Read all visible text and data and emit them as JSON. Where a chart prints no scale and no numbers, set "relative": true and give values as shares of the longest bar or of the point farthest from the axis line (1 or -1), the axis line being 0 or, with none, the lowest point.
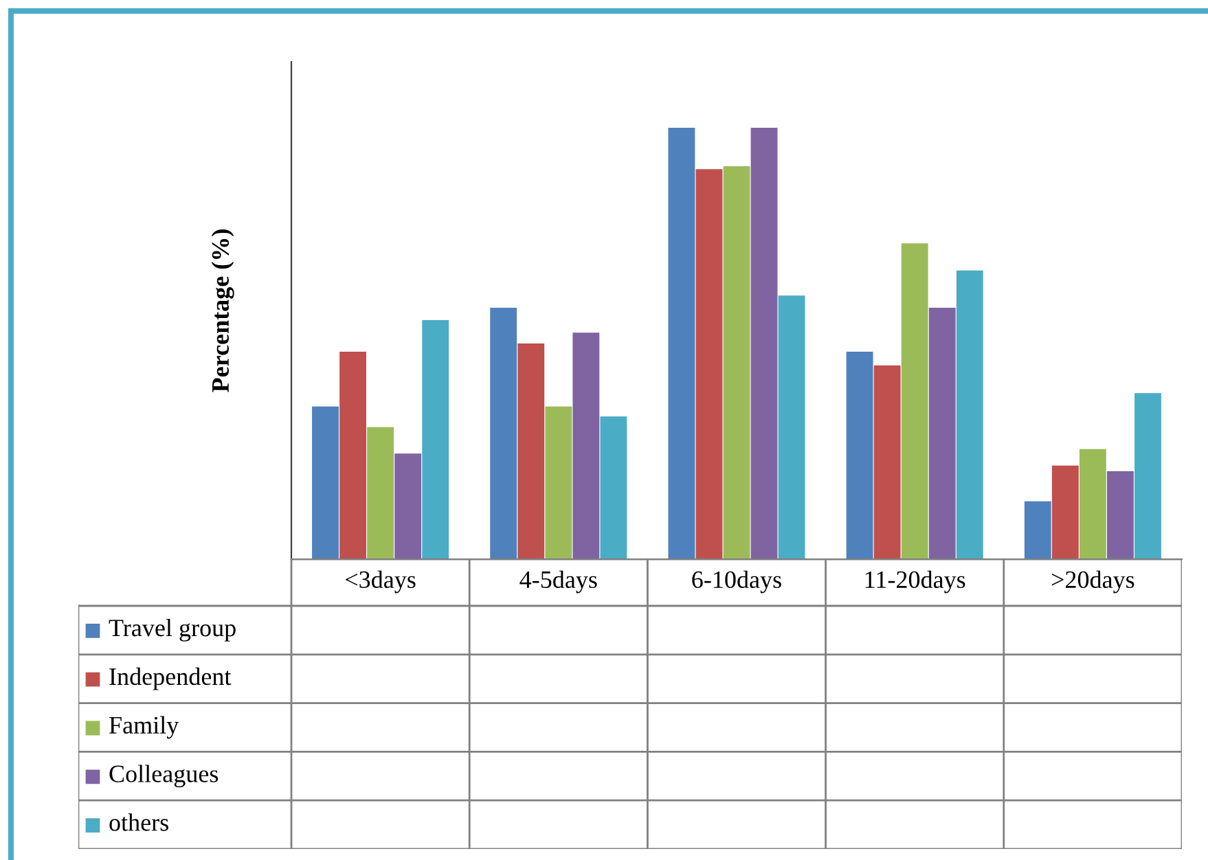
{
  "chart_data": {
    "type": "bar",
    "relative": true,
    "ylabel": "Percentage (%)",
    "legend": "bottom",
    "grid": false,
    "categories": [
      "<3days",
      "4-5days",
      "6-10days",
      "11-20days",
      ">20days"
    ],
    "series": [
      {
        "name": "Travel group",
        "color": "#4f81bd",
        "values": [
          0.354,
          0.583,
          1,
          0.481,
          0.134
        ]
      },
      {
        "name": "Independent",
        "color": "#c0504d",
        "values": [
          0.481,
          0.5,
          0.904,
          0.449,
          0.217
        ]
      },
      {
        "name": "Family",
        "color": "#9bbb59",
        "values": [
          0.306,
          0.354,
          0.911,
          0.732,
          0.255
        ]
      },
      {
        "name": "Colleagues",
        "color": "#8064a2",
        "values": [
          0.245,
          0.525,
          1,
          0.583,
          0.204
        ]
      },
      {
        "name": "others",
        "color": "#4bacc6",
        "values": [
          0.554,
          0.331,
          0.611,
          0.669,
          0.385
        ]
      }
    ]
  }
}
